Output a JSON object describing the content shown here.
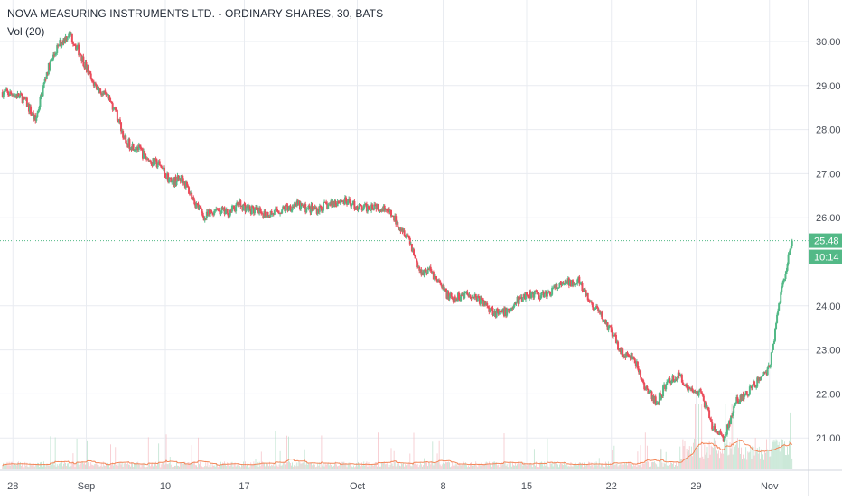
{
  "chart_data": {
    "type": "candlestick",
    "title": "NOVA MEASURING INSTRUMENTS LTD. - ORDINARY SHARES, 30, BATS",
    "volume_label": "Vol (20)",
    "ylim": [
      20.2,
      31.0
    ],
    "y_ticks": [
      "30.00",
      "29.00",
      "28.00",
      "27.00",
      "26.00",
      "24.00",
      "23.00",
      "22.00",
      "21.00"
    ],
    "x_ticks": [
      {
        "label": "28",
        "x": 0.5
      },
      {
        "label": "Sep",
        "x": 7
      },
      {
        "label": "10",
        "x": 14
      },
      {
        "label": "17",
        "x": 21
      },
      {
        "label": "Oct",
        "x": 31
      },
      {
        "label": "8",
        "x": 38.6
      },
      {
        "label": "15",
        "x": 46
      },
      {
        "label": "22",
        "x": 53.5
      },
      {
        "label": "29",
        "x": 61
      },
      {
        "label": "Nov",
        "x": 67.5
      }
    ],
    "xlim": [
      0,
      70
    ],
    "last_price": "25.48",
    "last_price_value": 25.48,
    "countdown": "10:14",
    "colors": {
      "up": "#53b987",
      "down": "#eb4d5c",
      "up_volume": "#b8e0cb",
      "down_volume": "#f5c0c6",
      "ma": "#f3875a",
      "grid": "#e9ecf1",
      "price_line": "#53b987"
    },
    "daily_closes": [
      {
        "x": 0,
        "close": 28.8
      },
      {
        "x": 1,
        "close": 28.7
      },
      {
        "x": 2,
        "close": 28.2
      },
      {
        "x": 3,
        "close": 29.3
      },
      {
        "x": 4,
        "close": 29.9
      },
      {
        "x": 5,
        "close": 30.2
      },
      {
        "x": 6,
        "close": 29.7
      },
      {
        "x": 7,
        "close": 29.1
      },
      {
        "x": 8,
        "close": 28.8
      },
      {
        "x": 9,
        "close": 28.5
      },
      {
        "x": 10,
        "close": 27.7
      },
      {
        "x": 11,
        "close": 27.6
      },
      {
        "x": 12,
        "close": 27.3
      },
      {
        "x": 13,
        "close": 27.2
      },
      {
        "x": 14,
        "close": 26.8
      },
      {
        "x": 15,
        "close": 26.9
      },
      {
        "x": 16,
        "close": 26.4
      },
      {
        "x": 17,
        "close": 26.0
      },
      {
        "x": 18,
        "close": 26.2
      },
      {
        "x": 19,
        "close": 26.1
      },
      {
        "x": 20,
        "close": 26.3
      },
      {
        "x": 21,
        "close": 26.2
      },
      {
        "x": 22,
        "close": 26.1
      },
      {
        "x": 23,
        "close": 26.1
      },
      {
        "x": 24,
        "close": 26.2
      },
      {
        "x": 25,
        "close": 26.3
      },
      {
        "x": 26,
        "close": 26.2
      },
      {
        "x": 27,
        "close": 26.2
      },
      {
        "x": 28,
        "close": 26.3
      },
      {
        "x": 29,
        "close": 26.4
      },
      {
        "x": 30,
        "close": 26.3
      },
      {
        "x": 31,
        "close": 26.2
      },
      {
        "x": 32,
        "close": 26.3
      },
      {
        "x": 33,
        "close": 26.2
      },
      {
        "x": 34,
        "close": 25.9
      },
      {
        "x": 35,
        "close": 25.6
      },
      {
        "x": 36,
        "close": 24.8
      },
      {
        "x": 37,
        "close": 24.8
      },
      {
        "x": 38,
        "close": 24.4
      },
      {
        "x": 39,
        "close": 24.1
      },
      {
        "x": 40,
        "close": 24.3
      },
      {
        "x": 41,
        "close": 24.2
      },
      {
        "x": 42,
        "close": 24.0
      },
      {
        "x": 43,
        "close": 23.8
      },
      {
        "x": 44,
        "close": 23.9
      },
      {
        "x": 45,
        "close": 24.2
      },
      {
        "x": 46,
        "close": 24.3
      },
      {
        "x": 47,
        "close": 24.2
      },
      {
        "x": 48,
        "close": 24.4
      },
      {
        "x": 49,
        "close": 24.5
      },
      {
        "x": 50,
        "close": 24.6
      },
      {
        "x": 51,
        "close": 24.1
      },
      {
        "x": 52,
        "close": 23.8
      },
      {
        "x": 53,
        "close": 23.4
      },
      {
        "x": 54,
        "close": 22.9
      },
      {
        "x": 55,
        "close": 22.8
      },
      {
        "x": 56,
        "close": 22.1
      },
      {
        "x": 57,
        "close": 21.8
      },
      {
        "x": 58,
        "close": 22.3
      },
      {
        "x": 59,
        "close": 22.4
      },
      {
        "x": 60,
        "close": 22.1
      },
      {
        "x": 61,
        "close": 22.0
      },
      {
        "x": 62,
        "close": 21.2
      },
      {
        "x": 63,
        "close": 21.0
      },
      {
        "x": 64,
        "close": 21.8
      },
      {
        "x": 65,
        "close": 22.0
      },
      {
        "x": 66,
        "close": 22.3
      },
      {
        "x": 67,
        "close": 22.6
      },
      {
        "x": 68,
        "close": 24.3
      },
      {
        "x": 69,
        "close": 25.48
      }
    ]
  }
}
